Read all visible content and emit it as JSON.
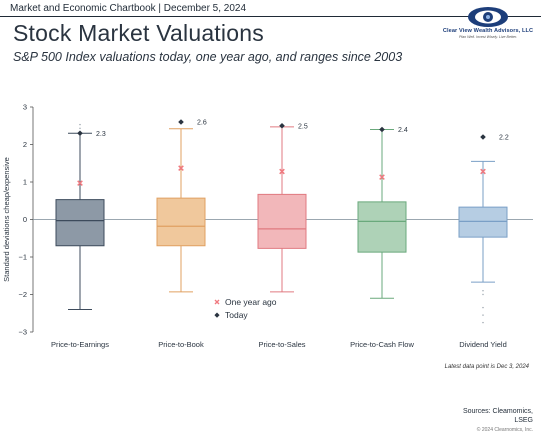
{
  "header": {
    "chartbook": "Market and Economic Chartbook | December 5, 2024",
    "title": "Stock Market Valuations",
    "subtitle": "S&P 500 Index valuations today, one year ago, and ranges since 2003"
  },
  "logo": {
    "name": "Clear View Wealth Advisors, LLC",
    "tagline": "Plan Well. Invest Wisely. Live Better.",
    "brand_color": "#1d3e7a"
  },
  "chart_data": {
    "type": "box",
    "ylabel": "Standard deviations cheap/expensive",
    "ylim": [
      -3,
      3
    ],
    "yticks": [
      -3,
      -2,
      -1,
      0,
      1,
      2,
      3
    ],
    "grid": false,
    "legend_placement": "bottom-center",
    "legend": [
      {
        "name": "One year ago",
        "marker": "x",
        "color": "#f07a80"
      },
      {
        "name": "Today",
        "marker": "diamond",
        "color": "#2a3440"
      }
    ],
    "categories": [
      "Price-to-Earnings",
      "Price-to-Book",
      "Price-to-Sales",
      "Price-to-Cash Flow",
      "Dividend Yield"
    ],
    "series": [
      {
        "category": "Price-to-Earnings",
        "color": "#8d99a6",
        "edge": "#3d4b5c",
        "min": -2.4,
        "q1": -0.7,
        "median": -0.03,
        "q3": 0.53,
        "max": 2.3,
        "one_year_ago": 0.97,
        "today": 2.3,
        "today_label": "2.3",
        "outliers": [
          2.43,
          2.53
        ]
      },
      {
        "category": "Price-to-Book",
        "color": "#f0c89c",
        "edge": "#e0a062",
        "min": -1.93,
        "q1": -0.7,
        "median": -0.18,
        "q3": 0.57,
        "max": 2.42,
        "one_year_ago": 1.37,
        "today": 2.6,
        "today_label": "2.6",
        "outliers": []
      },
      {
        "category": "Price-to-Sales",
        "color": "#f2b7ba",
        "edge": "#e07a80",
        "min": -1.93,
        "q1": -0.77,
        "median": -0.25,
        "q3": 0.67,
        "max": 2.47,
        "one_year_ago": 1.28,
        "today": 2.5,
        "today_label": "2.5",
        "outliers": []
      },
      {
        "category": "Price-to-Cash Flow",
        "color": "#aed2b7",
        "edge": "#6aa97c",
        "min": -2.1,
        "q1": -0.87,
        "median": -0.05,
        "q3": 0.47,
        "max": 2.4,
        "one_year_ago": 1.13,
        "today": 2.4,
        "today_label": "2.4",
        "outliers": []
      },
      {
        "category": "Dividend Yield",
        "color": "#b6cde3",
        "edge": "#7a9fc6",
        "min": -1.67,
        "q1": -0.47,
        "median": -0.05,
        "q3": 0.33,
        "max": 1.55,
        "one_year_ago": 1.28,
        "today": 2.2,
        "today_label": "2.2",
        "outliers": [
          -1.9,
          -2.0,
          -2.35,
          -2.55,
          -2.75
        ]
      }
    ]
  },
  "footnote": "Latest data point is Dec 3, 2024",
  "sources": {
    "line1": "Sources: Cleamomics,",
    "line2": "LSEG"
  },
  "copyright": "© 2024 Clearnomics, Inc."
}
